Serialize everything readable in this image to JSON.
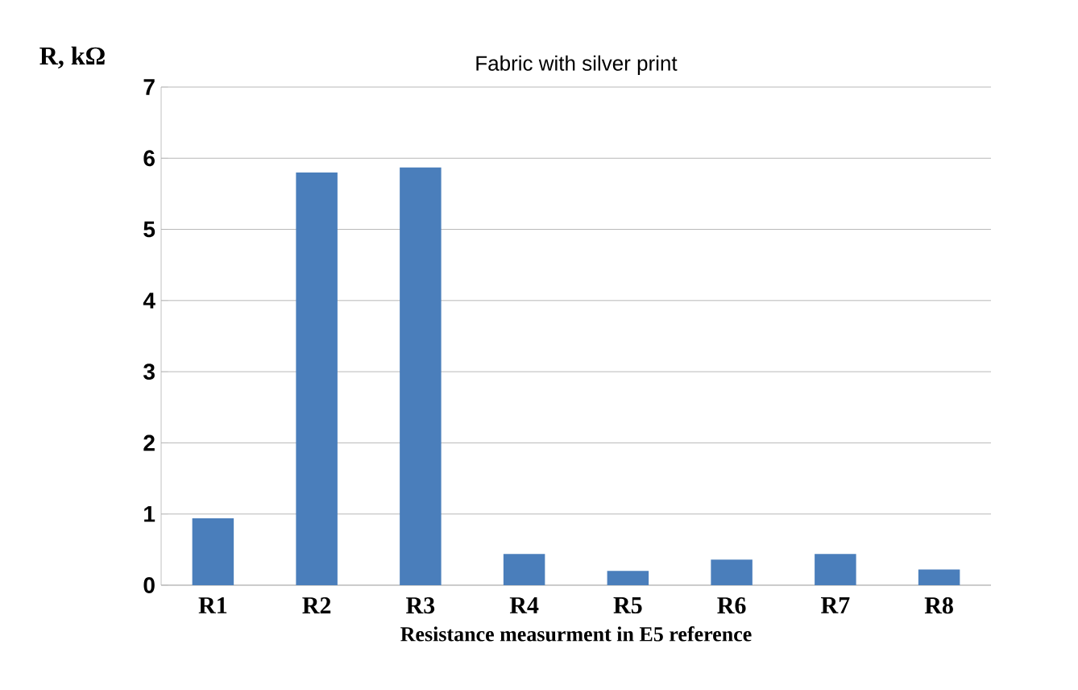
{
  "chart_data": {
    "type": "bar",
    "title": "Fabric with silver print",
    "xlabel": "Resistance measurment in E5 reference",
    "ylabel": "R, kΩ",
    "categories": [
      "R1",
      "R2",
      "R3",
      "R4",
      "R5",
      "R6",
      "R7",
      "R8"
    ],
    "values": [
      0.94,
      5.8,
      5.87,
      0.44,
      0.2,
      0.36,
      0.44,
      0.22
    ],
    "color": "#4a7ebb",
    "ylim": [
      0,
      7
    ],
    "yticks": [
      0,
      1,
      2,
      3,
      4,
      5,
      6,
      7
    ],
    "grid": "y"
  }
}
